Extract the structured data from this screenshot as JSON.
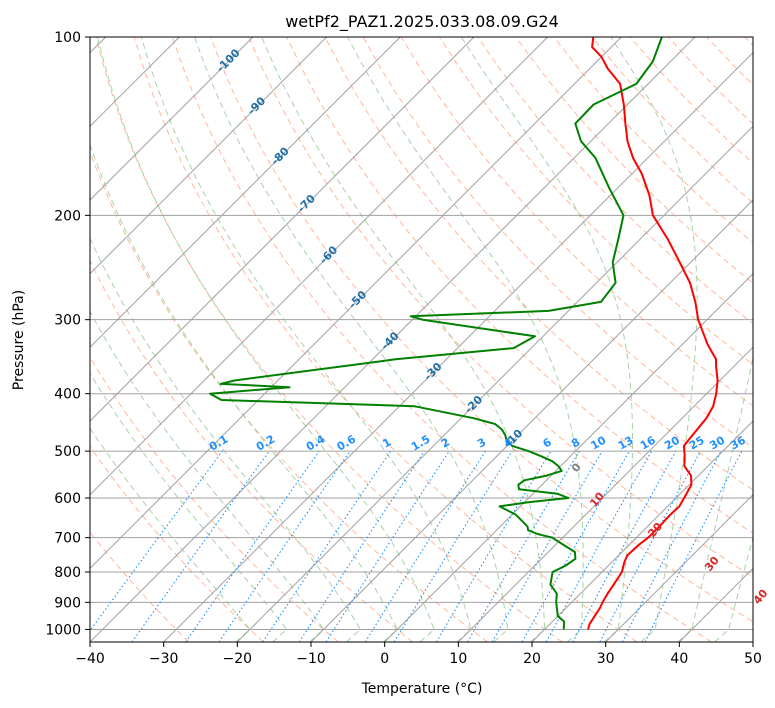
{
  "chart_data": {
    "type": "line",
    "title": "wetPf2_PAZ1.2025.033.08.09.G24",
    "xlabel": "Temperature (°C)",
    "ylabel": "Pressure (hPa)",
    "xlim": [
      -40,
      50
    ],
    "ylim": [
      1050,
      100
    ],
    "y_scale": "log",
    "skew": true,
    "grid": true,
    "x_ticks": [
      "−40",
      "−30",
      "−20",
      "−10",
      "0",
      "10",
      "20",
      "30",
      "40",
      "50"
    ],
    "y_ticks": [
      "100",
      "200",
      "300",
      "400",
      "500",
      "600",
      "700",
      "800",
      "900",
      "1000"
    ],
    "series": [
      {
        "color": "#ff0000",
        "points": [
          [
            1000,
            25.9
          ],
          [
            980,
            25.4
          ],
          [
            950,
            25.0
          ],
          [
            920,
            24.6
          ],
          [
            900,
            24.2
          ],
          [
            870,
            23.7
          ],
          [
            840,
            23.3
          ],
          [
            800,
            22.7
          ],
          [
            770,
            21.7
          ],
          [
            750,
            21.2
          ],
          [
            720,
            21.3
          ],
          [
            700,
            21.6
          ],
          [
            670,
            21.6
          ],
          [
            640,
            21.5
          ],
          [
            620,
            21.6
          ],
          [
            600,
            21.1
          ],
          [
            570,
            20.3
          ],
          [
            550,
            19.0
          ],
          [
            530,
            16.8
          ],
          [
            510,
            15.5
          ],
          [
            490,
            14.0
          ],
          [
            470,
            13.7
          ],
          [
            440,
            13.3
          ],
          [
            420,
            12.6
          ],
          [
            400,
            11.3
          ],
          [
            380,
            9.7
          ],
          [
            360,
            7.6
          ],
          [
            350,
            6.6
          ],
          [
            330,
            3.4
          ],
          [
            300,
            -1.2
          ],
          [
            280,
            -4.0
          ],
          [
            260,
            -7.3
          ],
          [
            240,
            -11.5
          ],
          [
            220,
            -16.1
          ],
          [
            200,
            -21.5
          ],
          [
            185,
            -24.7
          ],
          [
            170,
            -28.7
          ],
          [
            160,
            -32.0
          ],
          [
            150,
            -35.0
          ],
          [
            140,
            -37.7
          ],
          [
            130,
            -40.5
          ],
          [
            120,
            -43.8
          ],
          [
            113,
            -47.6
          ],
          [
            108,
            -50.0
          ],
          [
            104,
            -52.6
          ],
          [
            100,
            -53.8
          ]
        ]
      },
      {
        "color": "#008000",
        "points": [
          [
            1000,
            22.6
          ],
          [
            970,
            21.6
          ],
          [
            950,
            20.0
          ],
          [
            900,
            17.9
          ],
          [
            870,
            16.8
          ],
          [
            840,
            14.7
          ],
          [
            800,
            13.3
          ],
          [
            780,
            14.2
          ],
          [
            760,
            14.6
          ],
          [
            740,
            13.6
          ],
          [
            720,
            11.1
          ],
          [
            700,
            8.6
          ],
          [
            690,
            6.1
          ],
          [
            680,
            4.3
          ],
          [
            670,
            3.7
          ],
          [
            640,
            0.5
          ],
          [
            620,
            -2.8
          ],
          [
            610,
            0.5
          ],
          [
            600,
            5.4
          ],
          [
            590,
            3.3
          ],
          [
            580,
            -2.5
          ],
          [
            570,
            -3.2
          ],
          [
            560,
            -3.0
          ],
          [
            550,
            -0.6
          ],
          [
            540,
            0.8
          ],
          [
            530,
            -0.3
          ],
          [
            520,
            -1.8
          ],
          [
            510,
            -4.0
          ],
          [
            500,
            -6.4
          ],
          [
            490,
            -9.3
          ],
          [
            480,
            -10.8
          ],
          [
            470,
            -11.7
          ],
          [
            460,
            -12.9
          ],
          [
            450,
            -14.6
          ],
          [
            440,
            -18.3
          ],
          [
            420,
            -28.0
          ],
          [
            410,
            -55.0
          ],
          [
            400,
            -57.4
          ],
          [
            390,
            -47.5
          ],
          [
            385,
            -57.3
          ],
          [
            380,
            -55.9
          ],
          [
            350,
            -36.9
          ],
          [
            335,
            -22.4
          ],
          [
            320,
            -21.1
          ],
          [
            300,
            -38.6
          ],
          [
            296,
            -40.7
          ],
          [
            290,
            -22.7
          ],
          [
            280,
            -16.8
          ],
          [
            260,
            -17.4
          ],
          [
            240,
            -20.6
          ],
          [
            220,
            -22.9
          ],
          [
            200,
            -25.5
          ],
          [
            180,
            -31.1
          ],
          [
            160,
            -37.1
          ],
          [
            150,
            -41.3
          ],
          [
            140,
            -44.5
          ],
          [
            130,
            -44.6
          ],
          [
            120,
            -41.6
          ],
          [
            110,
            -42.4
          ],
          [
            100,
            -44.5
          ]
        ]
      }
    ],
    "mixing_ratio_labels": [
      "0.1",
      "0.2",
      "0.4",
      "0.6",
      "1",
      "1.5",
      "2",
      "3",
      "4",
      "6",
      "8",
      "10",
      "13",
      "16",
      "20",
      "25",
      "30",
      "36"
    ],
    "mixing_ratio_values": [
      0.1,
      0.2,
      0.4,
      0.6,
      1,
      1.5,
      2,
      3,
      4,
      6,
      8,
      10,
      13,
      16,
      20,
      25,
      30,
      36
    ],
    "dry_adiabat_labels": [
      "-100",
      "-90",
      "-80",
      "-70",
      "-60",
      "-50",
      "-40",
      "-30",
      "-20",
      "-10"
    ],
    "moist_adiabat_labels": [
      "0",
      "10",
      "20",
      "30",
      "40"
    ],
    "colors": {
      "temperature": "#ff0000",
      "dewpoint": "#008000",
      "isotherm": "#a0a0a0",
      "dry_adiabat": "#ffa07a",
      "moist_adiabat": "#90c890",
      "mixing_ratio": "#1e90ff",
      "dry_label": "#1f6fa8",
      "moist_label": "#d62728",
      "moist_zero_label": "#808080",
      "curved": "#d2b48c"
    }
  }
}
